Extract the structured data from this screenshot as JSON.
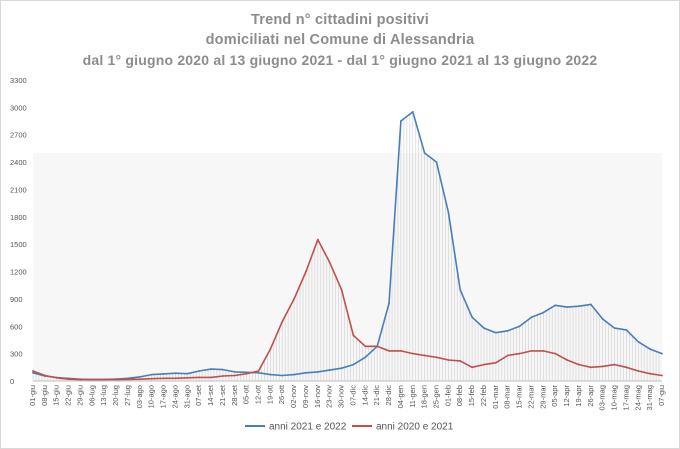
{
  "title_lines": [
    "Trend n° cittadini positivi",
    "domiciliati nel Comune di Alessandria",
    "dal 1° giugno 2020 al 13 giugno 2021 - dal 1° giugno 2021 al 13 giugno 2022"
  ],
  "chart_data": {
    "type": "line",
    "title": "Trend n° cittadini positivi domiciliati nel Comune di Alessandria dal 1° giugno 2020 al 13 giugno 2021 - dal 1° giugno 2021 al 13 giugno 2022",
    "xlabel": "",
    "ylabel": "",
    "ylim": [
      0,
      3300
    ],
    "yticks": [
      0,
      300,
      600,
      900,
      1200,
      1500,
      1800,
      2100,
      2400,
      2700,
      3000,
      3300
    ],
    "grid": false,
    "legend_position": "bottom",
    "categories": [
      "01-giu",
      "08-giu",
      "15-giu",
      "22-giu",
      "29-giu",
      "06-lug",
      "13-lug",
      "20-lug",
      "27-lug",
      "03-ago",
      "10-ago",
      "17-ago",
      "24-ago",
      "31-ago",
      "07-set",
      "14-set",
      "21-set",
      "28-set",
      "05-ott",
      "12-ott",
      "19-ott",
      "26-ott",
      "02-nov",
      "09-nov",
      "16-nov",
      "23-nov",
      "30-nov",
      "07-dic",
      "14-dic",
      "21-dic",
      "28-dic",
      "04-gen",
      "11-gen",
      "18-gen",
      "25-gen",
      "01-feb",
      "08-feb",
      "15-feb",
      "22-feb",
      "01-mar",
      "08-mar",
      "15-mar",
      "22-mar",
      "29-mar",
      "05-apr",
      "12-apr",
      "19-apr",
      "26-apr",
      "03-mag",
      "10-mag",
      "17-mag",
      "24-mag",
      "31-mag",
      "07-giu"
    ],
    "series": [
      {
        "name": "anni 2021 e 2022",
        "color": "#4a7ebb",
        "values": [
          90,
          55,
          38,
          28,
          20,
          18,
          18,
          22,
          30,
          45,
          70,
          78,
          85,
          80,
          110,
          130,
          125,
          100,
          95,
          90,
          70,
          60,
          70,
          90,
          100,
          120,
          140,
          180,
          260,
          380,
          850,
          2850,
          2950,
          2500,
          2400,
          1850,
          1000,
          700,
          580,
          530,
          550,
          600,
          700,
          750,
          830,
          810,
          820,
          840,
          680,
          580,
          560,
          430,
          350,
          300
        ]
      },
      {
        "name": "anni 2020 e 2021",
        "color": "#c0504d",
        "values": [
          110,
          60,
          35,
          20,
          15,
          15,
          15,
          15,
          18,
          20,
          25,
          30,
          30,
          35,
          40,
          40,
          55,
          60,
          80,
          110,
          350,
          650,
          900,
          1200,
          1550,
          1300,
          1000,
          500,
          380,
          380,
          330,
          330,
          300,
          280,
          260,
          230,
          220,
          150,
          180,
          200,
          280,
          300,
          330,
          330,
          300,
          230,
          180,
          150,
          160,
          180,
          150,
          110,
          80,
          60
        ]
      }
    ]
  }
}
